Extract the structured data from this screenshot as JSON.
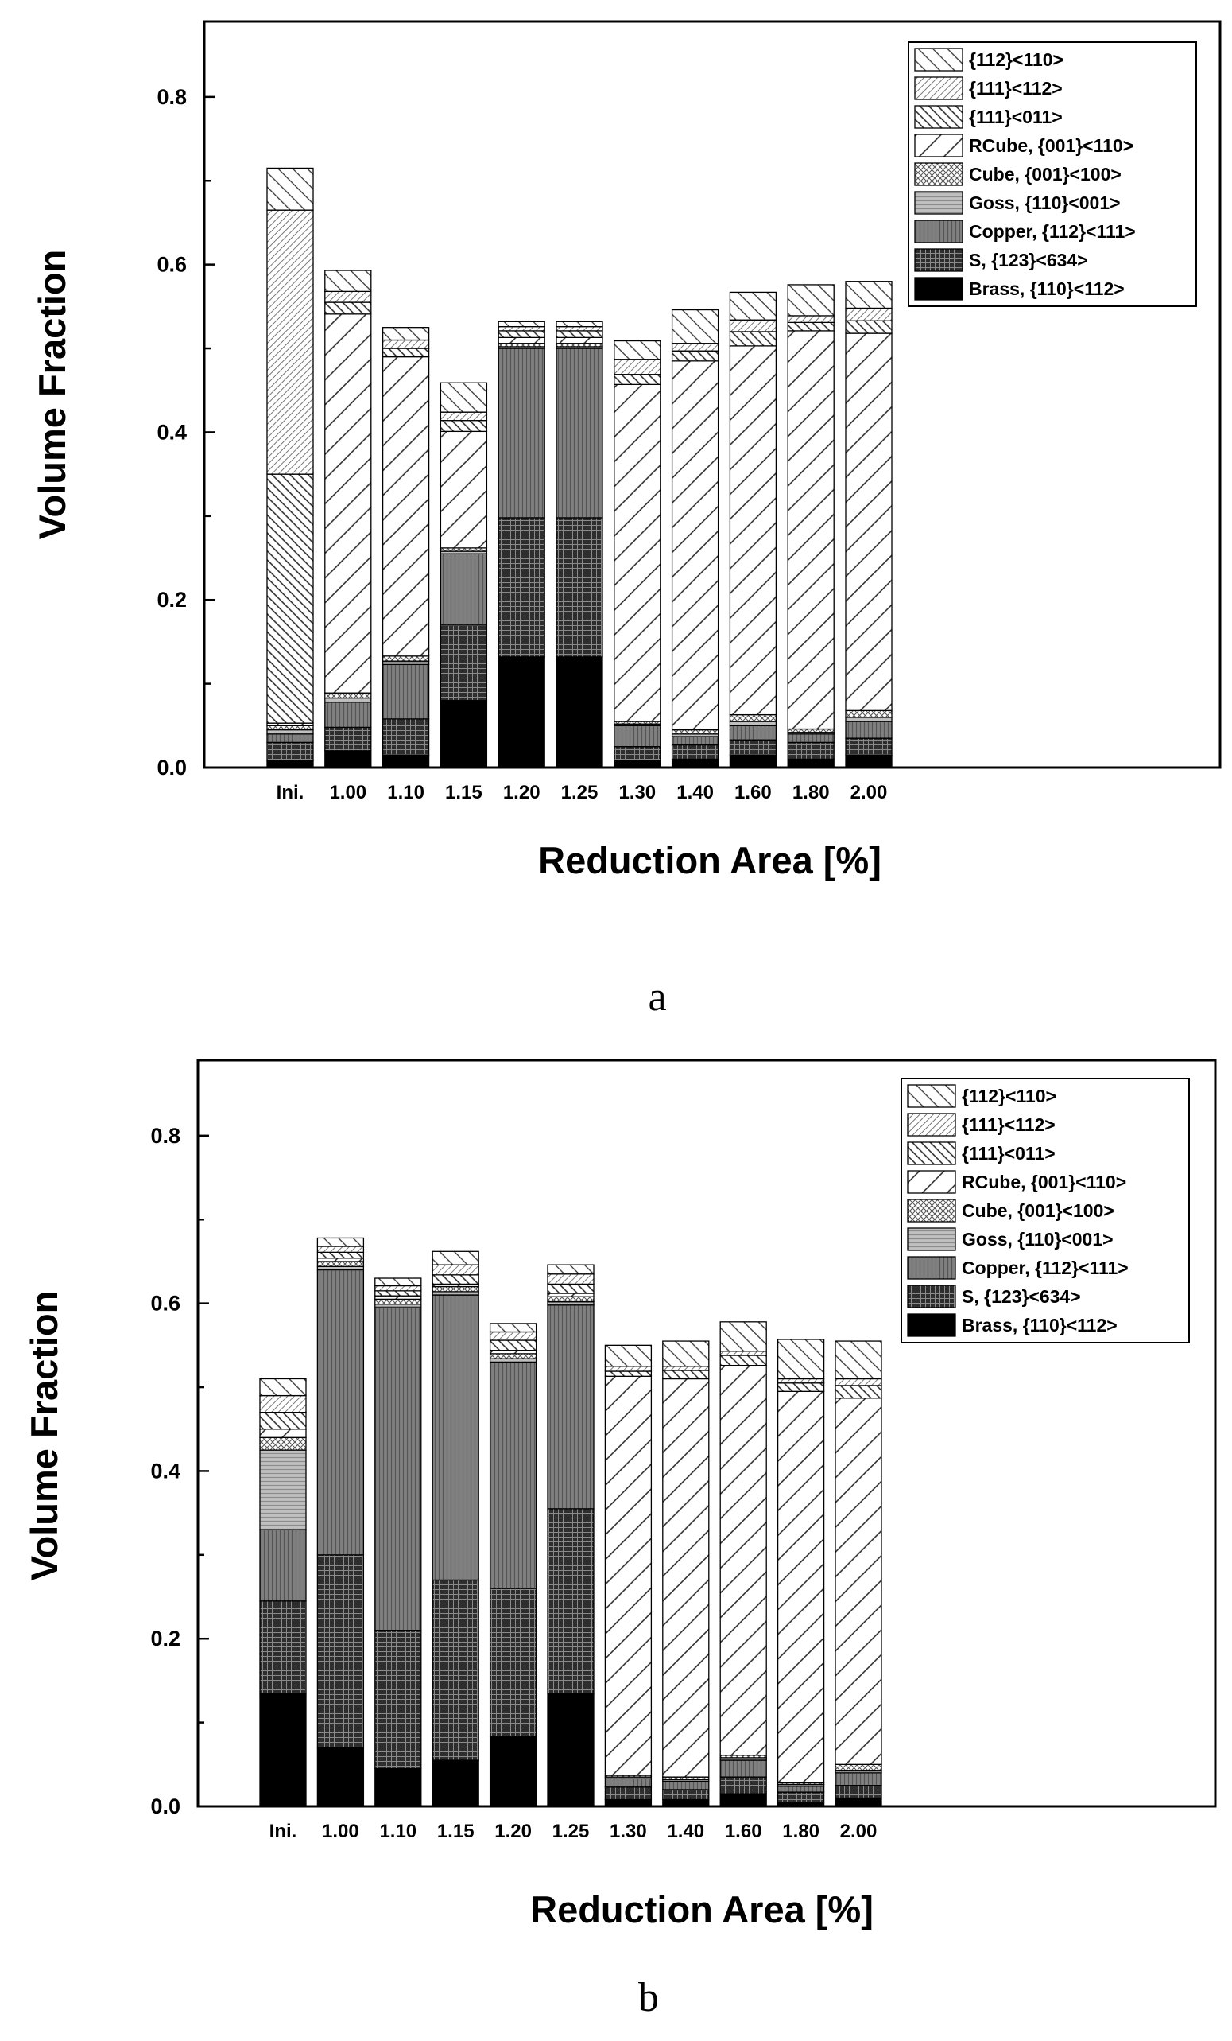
{
  "chart_data": [
    {
      "type": "bar",
      "stacked": true,
      "panel_label": "a",
      "xlabel": "Reduction Area [%]",
      "ylabel": "Volume Fraction",
      "ylim": [
        0,
        0.89
      ],
      "yticks": [
        "0.0",
        "0.2",
        "0.4",
        "0.6",
        "0.8"
      ],
      "legend_position": "top-right",
      "categories": [
        "Ini.",
        "1.00",
        "1.10",
        "1.15",
        "1.20",
        "1.25",
        "1.30",
        "1.40",
        "1.60",
        "1.80",
        "2.00"
      ],
      "series": [
        {
          "name": "Brass, {110}<112>",
          "pattern": "solid",
          "values": [
            0.008,
            0.02,
            0.015,
            0.08,
            0.132,
            0.132,
            0.008,
            0.01,
            0.015,
            0.01,
            0.015
          ]
        },
        {
          "name": "S, {123}<634>",
          "pattern": "dense-grid",
          "values": [
            0.022,
            0.028,
            0.043,
            0.09,
            0.166,
            0.166,
            0.017,
            0.017,
            0.018,
            0.02,
            0.02
          ]
        },
        {
          "name": "Copper, {112}<111>",
          "pattern": "vertical",
          "values": [
            0.01,
            0.03,
            0.065,
            0.085,
            0.202,
            0.202,
            0.025,
            0.01,
            0.017,
            0.01,
            0.02
          ]
        },
        {
          "name": "Goss, {110}<001>",
          "pattern": "horizontal",
          "values": [
            0.005,
            0.005,
            0.004,
            0.003,
            0.002,
            0.002,
            0.002,
            0.003,
            0.005,
            0.002,
            0.005
          ]
        },
        {
          "name": "Cube, {001}<100>",
          "pattern": "crosshatch",
          "values": [
            0.005,
            0.006,
            0.006,
            0.004,
            0.004,
            0.004,
            0.003,
            0.005,
            0.008,
            0.004,
            0.008
          ]
        },
        {
          "name": "RCube, {001}<110>",
          "pattern": "wide-back-diagonal",
          "values": [
            0.003,
            0.452,
            0.357,
            0.139,
            0.007,
            0.007,
            0.402,
            0.44,
            0.44,
            0.475,
            0.45
          ]
        },
        {
          "name": "{111}<011>",
          "pattern": "forward-diagonal",
          "values": [
            0.297,
            0.014,
            0.01,
            0.013,
            0.008,
            0.008,
            0.012,
            0.012,
            0.017,
            0.01,
            0.015
          ]
        },
        {
          "name": "{111}<112>",
          "pattern": "fine-back-diagonal",
          "values": [
            0.315,
            0.013,
            0.01,
            0.01,
            0.005,
            0.005,
            0.018,
            0.009,
            0.014,
            0.008,
            0.015
          ]
        },
        {
          "name": "{112}<110>",
          "pattern": "sparse-forward-diagonal",
          "values": [
            0.05,
            0.025,
            0.015,
            0.035,
            0.006,
            0.006,
            0.022,
            0.04,
            0.033,
            0.037,
            0.032
          ]
        }
      ]
    },
    {
      "type": "bar",
      "stacked": true,
      "panel_label": "b",
      "xlabel": "Reduction Area [%]",
      "ylabel": "Volume Fraction",
      "ylim": [
        0,
        0.89
      ],
      "yticks": [
        "0.0",
        "0.2",
        "0.4",
        "0.6",
        "0.8"
      ],
      "legend_position": "top-right",
      "categories": [
        "Ini.",
        "1.00",
        "1.10",
        "1.15",
        "1.20",
        "1.25",
        "1.30",
        "1.40",
        "1.60",
        "1.80",
        "2.00"
      ],
      "series": [
        {
          "name": "Brass, {110}<112>",
          "pattern": "solid",
          "values": [
            0.135,
            0.07,
            0.045,
            0.055,
            0.083,
            0.135,
            0.008,
            0.008,
            0.015,
            0.005,
            0.01
          ]
        },
        {
          "name": "S, {123}<634>",
          "pattern": "dense-grid",
          "values": [
            0.11,
            0.23,
            0.165,
            0.215,
            0.177,
            0.22,
            0.015,
            0.012,
            0.02,
            0.012,
            0.015
          ]
        },
        {
          "name": "Copper, {112}<111>",
          "pattern": "vertical",
          "values": [
            0.085,
            0.34,
            0.385,
            0.34,
            0.27,
            0.243,
            0.01,
            0.01,
            0.02,
            0.007,
            0.015
          ]
        },
        {
          "name": "Goss, {110}<001>",
          "pattern": "horizontal",
          "values": [
            0.095,
            0.004,
            0.004,
            0.004,
            0.004,
            0.004,
            0.002,
            0.002,
            0.003,
            0.002,
            0.003
          ]
        },
        {
          "name": "Cube, {001}<100>",
          "pattern": "crosshatch",
          "values": [
            0.015,
            0.006,
            0.006,
            0.006,
            0.006,
            0.006,
            0.002,
            0.003,
            0.003,
            0.002,
            0.007
          ]
        },
        {
          "name": "RCube, {001}<110>",
          "pattern": "wide-back-diagonal",
          "values": [
            0.01,
            0.004,
            0.004,
            0.003,
            0.004,
            0.004,
            0.476,
            0.475,
            0.465,
            0.467,
            0.437
          ]
        },
        {
          "name": "{111}<011>",
          "pattern": "forward-diagonal",
          "values": [
            0.02,
            0.007,
            0.006,
            0.011,
            0.012,
            0.011,
            0.006,
            0.01,
            0.012,
            0.01,
            0.015
          ]
        },
        {
          "name": "{111}<112>",
          "pattern": "fine-back-diagonal",
          "values": [
            0.02,
            0.007,
            0.006,
            0.012,
            0.01,
            0.012,
            0.006,
            0.005,
            0.005,
            0.005,
            0.008
          ]
        },
        {
          "name": "{112}<110>",
          "pattern": "sparse-forward-diagonal",
          "values": [
            0.02,
            0.01,
            0.009,
            0.016,
            0.01,
            0.011,
            0.025,
            0.03,
            0.035,
            0.047,
            0.045
          ]
        }
      ]
    }
  ]
}
